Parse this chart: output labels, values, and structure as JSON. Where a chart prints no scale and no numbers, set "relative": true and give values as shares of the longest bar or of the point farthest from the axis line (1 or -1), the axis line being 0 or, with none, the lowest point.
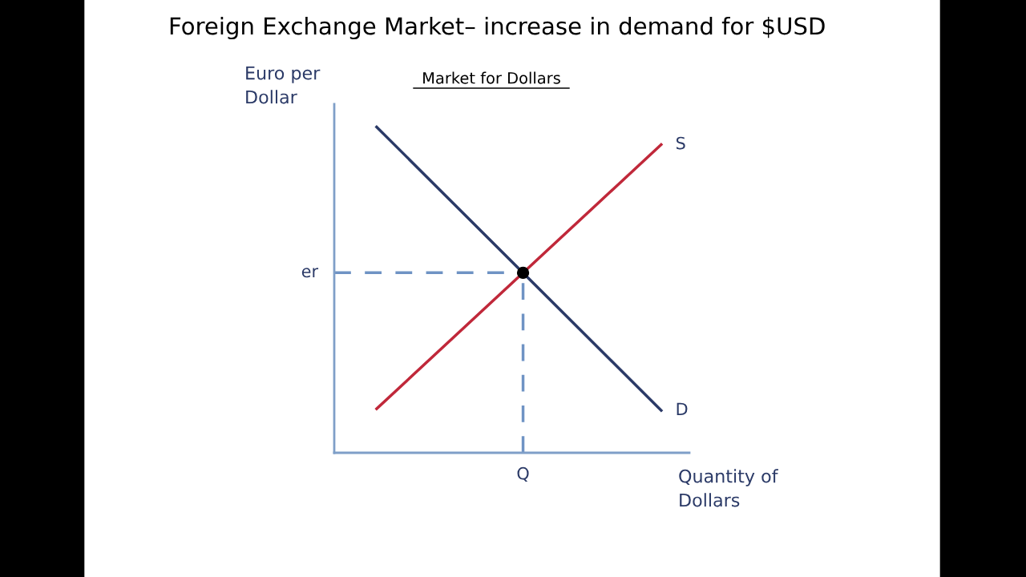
{
  "chart_data": {
    "type": "line",
    "title": "Foreign Exchange Market– increase in demand for $USD",
    "subtitle": "Market for Dollars",
    "ylabel": "Euro per\nDollar",
    "xlabel": "Quantity of\nDollars",
    "relative": true,
    "categories": [
      null,
      null
    ],
    "series": [
      {
        "name": "S",
        "color": "#c0283a",
        "values": [
          0.135,
          0.946
        ]
      },
      {
        "name": "D",
        "color": "#2b3a67",
        "values": [
          1,
          0.13
        ]
      }
    ],
    "ref_lines": [
      {
        "axis": "y",
        "value": 0.553,
        "label": "er",
        "color": "#6f93c4",
        "line_style": "dashed"
      }
    ],
    "annotations": [
      "Q"
    ],
    "marker": "none",
    "line_style": "solid"
  }
}
